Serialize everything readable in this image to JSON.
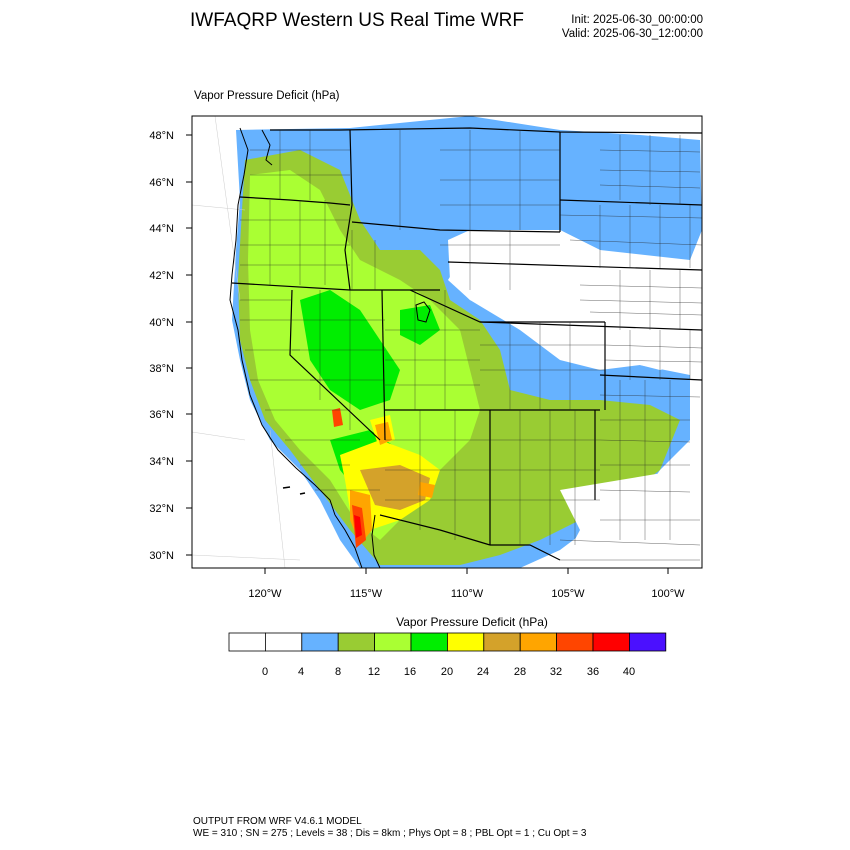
{
  "header": {
    "title": "IWFAQRP Western US Real Time WRF",
    "init": "Init: 2025-06-30_00:00:00",
    "valid": "Valid: 2025-06-30_12:00:00"
  },
  "field_label": "Vapor Pressure Deficit   (hPa)",
  "map": {
    "lat_labels": [
      "48°N",
      "46°N",
      "44°N",
      "42°N",
      "40°N",
      "38°N",
      "36°N",
      "34°N",
      "32°N",
      "30°N"
    ],
    "lon_labels": [
      "120°W",
      "115°W",
      "110°W",
      "105°W",
      "100°W"
    ]
  },
  "colorbar": {
    "title": "Vapor Pressure Deficit  (hPa)",
    "tick_labels": [
      "0",
      "4",
      "8",
      "12",
      "16",
      "20",
      "24",
      "28",
      "32",
      "36",
      "40"
    ],
    "bins": [
      {
        "color": "#ffffff"
      },
      {
        "color": "#ffffff"
      },
      {
        "color": "#66b2ff"
      },
      {
        "color": "#99cc33"
      },
      {
        "color": "#aaff33"
      },
      {
        "color": "#00ee00"
      },
      {
        "color": "#ffff00"
      },
      {
        "color": "#d4a22a"
      },
      {
        "color": "#ffa500"
      },
      {
        "color": "#ff4500"
      },
      {
        "color": "#ff0000"
      },
      {
        "color": "#4b10ff"
      }
    ]
  },
  "footer": {
    "line1": "OUTPUT FROM WRF V4.6.1 MODEL",
    "line2": "WE = 310 ; SN = 275 ; Levels = 38 ; Dis = 8km ; Phys Opt = 8 ; PBL Opt = 1 ; Cu Opt = 3"
  }
}
